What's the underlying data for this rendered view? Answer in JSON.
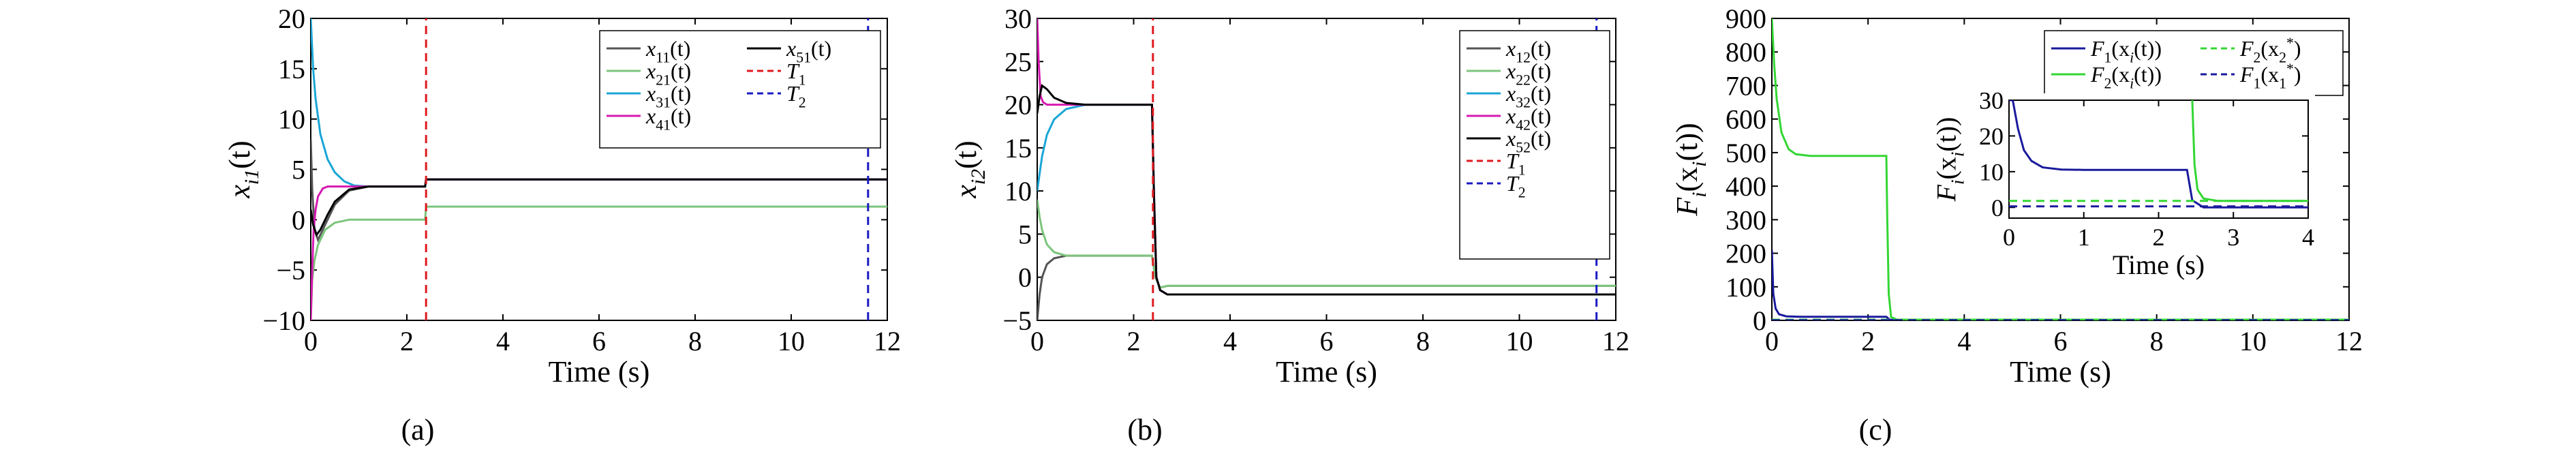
{
  "figure": {
    "captions": [
      "(a)",
      "(b)",
      "(c)"
    ]
  },
  "chart_data": [
    {
      "type": "line",
      "panel": "(a)",
      "xlabel": "Time (s)",
      "ylabel": "x_{i1}(t)",
      "xlim": [
        0,
        12
      ],
      "ylim": [
        -10,
        20
      ],
      "xticks": [
        0,
        2,
        4,
        6,
        8,
        10,
        12
      ],
      "yticks": [
        -10,
        -5,
        0,
        5,
        10,
        15,
        20
      ],
      "grid": false,
      "legend_position": "top-right",
      "legend_columns": 2,
      "series": [
        {
          "name": "x_{11}(t)",
          "color": "#555555",
          "dash": "solid",
          "points": [
            [
              0,
              8
            ],
            [
              0.03,
              3
            ],
            [
              0.08,
              -1
            ],
            [
              0.15,
              -2
            ],
            [
              0.3,
              -0.5
            ],
            [
              0.5,
              1.5
            ],
            [
              0.8,
              2.9
            ],
            [
              1.2,
              3.3
            ],
            [
              2.38,
              3.3
            ],
            [
              2.4,
              4
            ],
            [
              12,
              4
            ]
          ]
        },
        {
          "name": "x_{21}(t)",
          "color": "#7cc57c",
          "dash": "solid",
          "points": [
            [
              0,
              -10
            ],
            [
              0.03,
              -6
            ],
            [
              0.08,
              -4
            ],
            [
              0.15,
              -2.5
            ],
            [
              0.3,
              -1
            ],
            [
              0.5,
              -0.3
            ],
            [
              0.8,
              0
            ],
            [
              2.38,
              0
            ],
            [
              2.4,
              1.3
            ],
            [
              12,
              1.3
            ]
          ]
        },
        {
          "name": "x_{31}(t)",
          "color": "#1aa6d6",
          "dash": "solid",
          "points": [
            [
              0,
              20
            ],
            [
              0.05,
              15
            ],
            [
              0.1,
              12
            ],
            [
              0.2,
              8.5
            ],
            [
              0.35,
              6
            ],
            [
              0.5,
              4.7
            ],
            [
              0.7,
              3.8
            ],
            [
              0.9,
              3.4
            ],
            [
              1.2,
              3.3
            ],
            [
              2.38,
              3.3
            ],
            [
              2.4,
              4
            ],
            [
              12,
              4
            ]
          ]
        },
        {
          "name": "x_{41}(t)",
          "color": "#d61ab0",
          "dash": "solid",
          "points": [
            [
              0,
              -10
            ],
            [
              0.03,
              -5
            ],
            [
              0.06,
              -1
            ],
            [
              0.1,
              1
            ],
            [
              0.15,
              2.3
            ],
            [
              0.25,
              3.1
            ],
            [
              0.35,
              3.3
            ],
            [
              2.38,
              3.3
            ],
            [
              2.4,
              4
            ],
            [
              12,
              4
            ]
          ]
        },
        {
          "name": "x_{51}(t)",
          "color": "#000000",
          "dash": "solid",
          "points": [
            [
              0,
              1
            ],
            [
              0.05,
              -0.5
            ],
            [
              0.12,
              -1.5
            ],
            [
              0.2,
              -1
            ],
            [
              0.35,
              0.5
            ],
            [
              0.5,
              1.8
            ],
            [
              0.8,
              3
            ],
            [
              1.2,
              3.3
            ],
            [
              2.38,
              3.3
            ],
            [
              2.4,
              4
            ],
            [
              12,
              4
            ]
          ]
        },
        {
          "name": "T_1",
          "color": "#e0191e",
          "dash": "dashed",
          "points": [
            [
              2.4,
              -10
            ],
            [
              2.4,
              20
            ]
          ]
        },
        {
          "name": "T_2",
          "color": "#1a1ac4",
          "dash": "dashed",
          "points": [
            [
              11.6,
              -10
            ],
            [
              11.6,
              20
            ]
          ]
        }
      ]
    },
    {
      "type": "line",
      "panel": "(b)",
      "xlabel": "Time (s)",
      "ylabel": "x_{i2}(t)",
      "xlim": [
        0,
        12
      ],
      "ylim": [
        -5,
        30
      ],
      "xticks": [
        0,
        2,
        4,
        6,
        8,
        10,
        12
      ],
      "yticks": [
        -5,
        0,
        5,
        10,
        15,
        20,
        25,
        30
      ],
      "grid": false,
      "legend_position": "top-right",
      "legend_columns": 1,
      "series": [
        {
          "name": "x_{12}(t)",
          "color": "#555555",
          "dash": "solid",
          "points": [
            [
              0,
              -5
            ],
            [
              0.05,
              -2
            ],
            [
              0.1,
              0
            ],
            [
              0.2,
              1.5
            ],
            [
              0.35,
              2.2
            ],
            [
              0.6,
              2.5
            ],
            [
              2.38,
              2.5
            ],
            [
              2.45,
              0
            ],
            [
              2.55,
              -1.2
            ],
            [
              2.7,
              -1
            ],
            [
              12,
              -1
            ]
          ]
        },
        {
          "name": "x_{22}(t)",
          "color": "#7cc57c",
          "dash": "solid",
          "points": [
            [
              0,
              9
            ],
            [
              0.05,
              7
            ],
            [
              0.1,
              5.5
            ],
            [
              0.2,
              3.8
            ],
            [
              0.35,
              2.9
            ],
            [
              0.6,
              2.5
            ],
            [
              2.38,
              2.5
            ],
            [
              2.45,
              0
            ],
            [
              2.55,
              -1.2
            ],
            [
              2.7,
              -1
            ],
            [
              12,
              -1
            ]
          ]
        },
        {
          "name": "x_{32}(t)",
          "color": "#1aa6d6",
          "dash": "solid",
          "points": [
            [
              0,
              10
            ],
            [
              0.05,
              12
            ],
            [
              0.1,
              14
            ],
            [
              0.2,
              16.5
            ],
            [
              0.35,
              18.3
            ],
            [
              0.6,
              19.5
            ],
            [
              1,
              20
            ],
            [
              2.38,
              20
            ],
            [
              2.42,
              10
            ],
            [
              2.47,
              0
            ],
            [
              2.55,
              -1.5
            ],
            [
              2.7,
              -2
            ],
            [
              12,
              -2
            ]
          ]
        },
        {
          "name": "x_{42}(t)",
          "color": "#d61ab0",
          "dash": "solid",
          "points": [
            [
              0,
              30
            ],
            [
              0.03,
              25
            ],
            [
              0.07,
              21
            ],
            [
              0.12,
              20.3
            ],
            [
              0.2,
              20
            ],
            [
              2.38,
              20
            ],
            [
              2.42,
              10
            ],
            [
              2.47,
              0
            ],
            [
              2.55,
              -1.5
            ],
            [
              2.7,
              -2
            ],
            [
              12,
              -2
            ]
          ]
        },
        {
          "name": "x_{52}(t)",
          "color": "#000000",
          "dash": "solid",
          "points": [
            [
              0,
              19
            ],
            [
              0.05,
              21
            ],
            [
              0.1,
              22.2
            ],
            [
              0.2,
              21.8
            ],
            [
              0.35,
              20.8
            ],
            [
              0.6,
              20.2
            ],
            [
              1,
              20
            ],
            [
              2.38,
              20
            ],
            [
              2.42,
              10
            ],
            [
              2.47,
              0
            ],
            [
              2.55,
              -1.5
            ],
            [
              2.7,
              -2
            ],
            [
              12,
              -2
            ]
          ]
        },
        {
          "name": "T_1",
          "color": "#e0191e",
          "dash": "dashed",
          "points": [
            [
              2.4,
              -5
            ],
            [
              2.4,
              30
            ]
          ]
        },
        {
          "name": "T_2",
          "color": "#1a1ac4",
          "dash": "dashed",
          "points": [
            [
              11.6,
              -5
            ],
            [
              11.6,
              30
            ]
          ]
        }
      ]
    },
    {
      "type": "line",
      "panel": "(c)",
      "xlabel": "Time (s)",
      "ylabel": "F_i(x_i(t))",
      "xlim": [
        0,
        12
      ],
      "ylim": [
        0,
        900
      ],
      "xticks": [
        0,
        2,
        4,
        6,
        8,
        10,
        12
      ],
      "yticks": [
        0,
        100,
        200,
        300,
        400,
        500,
        600,
        700,
        800,
        900
      ],
      "grid": false,
      "legend_position": "top-right",
      "legend_columns": 2,
      "series": [
        {
          "name": "F_1(x_i(t))",
          "color": "#1a1a9c",
          "dash": "solid",
          "points": [
            [
              0,
              210
            ],
            [
              0.03,
              80
            ],
            [
              0.08,
              35
            ],
            [
              0.15,
              18
            ],
            [
              0.3,
              12
            ],
            [
              0.6,
              10.5
            ],
            [
              2.38,
              10.5
            ],
            [
              2.45,
              2
            ],
            [
              2.6,
              1
            ],
            [
              12,
              1
            ]
          ]
        },
        {
          "name": "F_2(x_i(t))",
          "color": "#33d633",
          "dash": "solid",
          "points": [
            [
              0,
              900
            ],
            [
              0.05,
              760
            ],
            [
              0.1,
              660
            ],
            [
              0.2,
              560
            ],
            [
              0.35,
              510
            ],
            [
              0.5,
              495
            ],
            [
              0.8,
              490
            ],
            [
              2.38,
              490
            ],
            [
              2.4,
              300
            ],
            [
              2.43,
              80
            ],
            [
              2.48,
              10
            ],
            [
              2.6,
              2
            ],
            [
              12,
              2
            ]
          ]
        },
        {
          "name": "F_2(x_2^*)",
          "color": "#33d633",
          "dash": "dashed",
          "points": [
            [
              0,
              2
            ],
            [
              12,
              2
            ]
          ]
        },
        {
          "name": "F_1(x_1^*)",
          "color": "#1a1a9c",
          "dash": "dashed",
          "points": [
            [
              0,
              0.5
            ],
            [
              12,
              0.5
            ]
          ]
        }
      ],
      "inset": {
        "xlabel": "Time (s)",
        "ylabel": "F_i(x_i(t))",
        "xlim": [
          0,
          4
        ],
        "ylim": [
          -3,
          30
        ],
        "xticks": [
          0,
          1,
          2,
          3,
          4
        ],
        "yticks": [
          0,
          10,
          20,
          30
        ],
        "series": [
          {
            "name": "F_1(x_i(t))",
            "color": "#1a1a9c",
            "dash": "solid",
            "points": [
              [
                0,
                30
              ],
              [
                0.05,
                30
              ],
              [
                0.12,
                22
              ],
              [
                0.2,
                16
              ],
              [
                0.3,
                13
              ],
              [
                0.45,
                11.2
              ],
              [
                0.7,
                10.6
              ],
              [
                1,
                10.5
              ],
              [
                2.38,
                10.5
              ],
              [
                2.45,
                2
              ],
              [
                2.6,
                0
              ],
              [
                4,
                0
              ]
            ]
          },
          {
            "name": "F_2(x_i(t))",
            "color": "#33d633",
            "dash": "solid",
            "points": [
              [
                2.45,
                30
              ],
              [
                2.48,
                12
              ],
              [
                2.52,
                5
              ],
              [
                2.6,
                2.5
              ],
              [
                2.8,
                1.8
              ],
              [
                4,
                1.8
              ]
            ]
          },
          {
            "name": "F_2(x_2^*)",
            "color": "#33d633",
            "dash": "dashed",
            "points": [
              [
                0,
                1.8
              ],
              [
                4,
                1.8
              ]
            ]
          },
          {
            "name": "F_1(x_1^*)",
            "color": "#1a1a9c",
            "dash": "dashed",
            "points": [
              [
                0,
                0.3
              ],
              [
                4,
                0.3
              ]
            ]
          }
        ]
      }
    }
  ]
}
